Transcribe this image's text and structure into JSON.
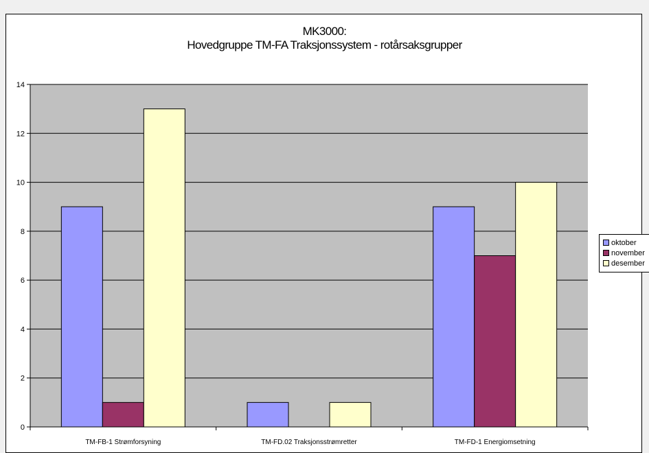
{
  "chart_data": {
    "type": "bar",
    "title": "MK3000:",
    "subtitle": "Hovedgruppe TM-FA Traksjonssystem - rotårsaksgrupper",
    "categories": [
      "TM-FB-1 Strømforsyning",
      "TM-FD.02 Traksjonsstrømretter",
      "TM-FD-1 Energiomsetning"
    ],
    "series": [
      {
        "name": "oktober",
        "color": "#9999ff",
        "values": [
          9,
          1,
          9
        ]
      },
      {
        "name": "november",
        "color": "#993366",
        "values": [
          1,
          0,
          7
        ]
      },
      {
        "name": "desember",
        "color": "#ffffcc",
        "values": [
          13,
          1,
          10
        ]
      }
    ],
    "ylim": [
      0,
      14
    ],
    "yticks": [
      0,
      2,
      4,
      6,
      8,
      10,
      12,
      14
    ],
    "grid": true,
    "plot_background": "#c0c0c0",
    "legend_position": "right"
  }
}
